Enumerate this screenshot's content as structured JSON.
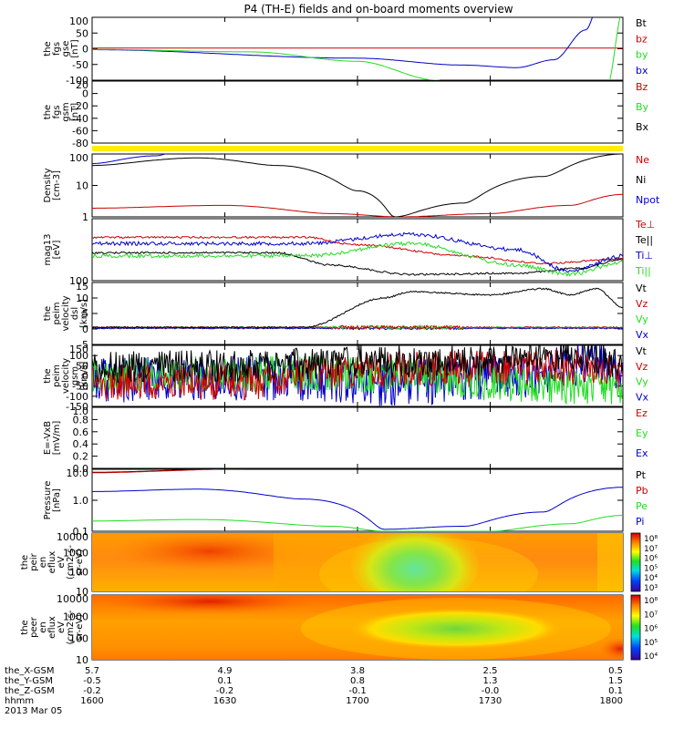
{
  "title": "P4 (TH-E) fields and on-board moments overview",
  "colors": {
    "black": "#000000",
    "red": "#cc0000",
    "green": "#22dd22",
    "blue": "#0000cc",
    "yellow": "#ffee00"
  },
  "chart_data": {
    "type": "line",
    "x_ticks": [
      "1600",
      "1630",
      "1700",
      "1730",
      "1800"
    ],
    "footer": {
      "rows": [
        {
          "label": "the_X-GSM",
          "values": [
            "5.7",
            "4.9",
            "3.8",
            "2.5",
            "0.5"
          ]
        },
        {
          "label": "the_Y-GSM",
          "values": [
            "-0.5",
            "0.1",
            "0.8",
            "1.3",
            "1.5"
          ]
        },
        {
          "label": "the_Z-GSM",
          "values": [
            "-0.2",
            "-0.2",
            "-0.1",
            "-0.0",
            "0.1"
          ]
        },
        {
          "label": "hhmm",
          "values": [
            "1600",
            "1630",
            "1700",
            "1730",
            "1800"
          ]
        }
      ],
      "date": "2013 Mar 05"
    },
    "panels": [
      {
        "id": "fgs_gse",
        "ylabel": [
          "the",
          "fgs",
          "gse",
          "[nT]"
        ],
        "ylim": [
          -100,
          100
        ],
        "yticks": [
          "100",
          "50",
          "0",
          "-50",
          "-100"
        ],
        "legend": [
          {
            "name": "Bt",
            "color": "black"
          },
          {
            "name": "bz",
            "color": "red"
          },
          {
            "name": "by",
            "color": "green"
          },
          {
            "name": "bx",
            "color": "blue"
          }
        ]
      },
      {
        "id": "fgs_gsm",
        "ylabel": [
          "the",
          "fgs",
          "gsm",
          "[nT]"
        ],
        "ylim": [
          -80,
          20
        ],
        "yticks": [
          "20",
          "0",
          "-20",
          "-40",
          "-60",
          "-80"
        ],
        "legend": [
          {
            "name": "Bz",
            "color": "red"
          },
          {
            "name": "By",
            "color": "green"
          },
          {
            "name": "Bx",
            "color": "black"
          }
        ]
      },
      {
        "id": "density",
        "ylabel": [
          "Density",
          "[cm-3]"
        ],
        "yscale": "log",
        "ylim": [
          1,
          150
        ],
        "yticks": [
          "100",
          "10",
          "1"
        ],
        "legend": [
          {
            "name": "Ne",
            "color": "red"
          },
          {
            "name": "Ni",
            "color": "black"
          },
          {
            "name": "Npot",
            "color": "blue"
          }
        ]
      },
      {
        "id": "temperature",
        "ylabel": [
          "mag13",
          "[eV]"
        ],
        "yscale": "log",
        "yticks": [
          "100"
        ],
        "legend": [
          {
            "name": "Te⊥",
            "color": "red"
          },
          {
            "name": "Te||",
            "color": "black"
          },
          {
            "name": "Ti⊥",
            "color": "blue"
          },
          {
            "name": "Ti||",
            "color": "green"
          }
        ]
      },
      {
        "id": "vel_dsl",
        "ylabel": [
          "the",
          "peim",
          "velocity",
          "dsl",
          "[km/s]"
        ],
        "ylim": [
          -5,
          15
        ],
        "yticks": [
          "15",
          "10",
          "5",
          "0",
          "-5"
        ],
        "legend": [
          {
            "name": "Vt",
            "color": "black"
          },
          {
            "name": "Vz",
            "color": "red"
          },
          {
            "name": "Vy",
            "color": "green"
          },
          {
            "name": "Vx",
            "color": "blue"
          }
        ]
      },
      {
        "id": "vel_gsm",
        "ylabel": [
          "the",
          "peim",
          "velocity",
          "gsm",
          "[km/s]"
        ],
        "ylim": [
          -150,
          150
        ],
        "yticks": [
          "150",
          "100",
          "50",
          "0",
          "-50",
          "-100",
          "-150"
        ],
        "legend": [
          {
            "name": "Vt",
            "color": "black"
          },
          {
            "name": "Vz",
            "color": "red"
          },
          {
            "name": "Vy",
            "color": "green"
          },
          {
            "name": "Vx",
            "color": "blue"
          }
        ]
      },
      {
        "id": "efield",
        "ylabel": [
          "E=-VxB",
          "[mV/m]"
        ],
        "ylim": [
          0,
          1
        ],
        "yticks": [
          "1.0",
          "0.8",
          "0.6",
          "0.4",
          "0.2",
          "0.0"
        ],
        "legend": [
          {
            "name": "Ez",
            "color": "red"
          },
          {
            "name": "Ey",
            "color": "green"
          },
          {
            "name": "Ex",
            "color": "blue"
          }
        ]
      },
      {
        "id": "pressure",
        "ylabel": [
          "Pressure",
          "[nPa]"
        ],
        "yscale": "log",
        "yticks": [
          "10.0",
          "1.0",
          "0.1"
        ],
        "legend": [
          {
            "name": "Pt",
            "color": "black"
          },
          {
            "name": "Pb",
            "color": "red"
          },
          {
            "name": "Pe",
            "color": "green"
          },
          {
            "name": "Pi",
            "color": "blue"
          }
        ]
      },
      {
        "id": "ion_spec",
        "type": "heatmap",
        "ylabel": [
          "the",
          "peir",
          "en",
          "eflux",
          "eV",
          "(cm2-s-",
          "sr-eV)"
        ],
        "yticks": [
          "10000",
          "1000",
          "100",
          "10"
        ],
        "colorbar_ticks": [
          "10⁸",
          "10⁷",
          "10⁶",
          "10⁵",
          "10⁴",
          "10³"
        ]
      },
      {
        "id": "ele_spec",
        "type": "heatmap",
        "ylabel": [
          "the",
          "peer",
          "en",
          "eflux",
          "eV",
          "(cm2-s-",
          "sr-eV)"
        ],
        "yticks": [
          "10000",
          "1000",
          "100",
          "10"
        ],
        "colorbar_ticks": [
          "10⁸",
          "10⁷",
          "10⁶",
          "10⁵",
          "10⁴"
        ]
      }
    ]
  }
}
